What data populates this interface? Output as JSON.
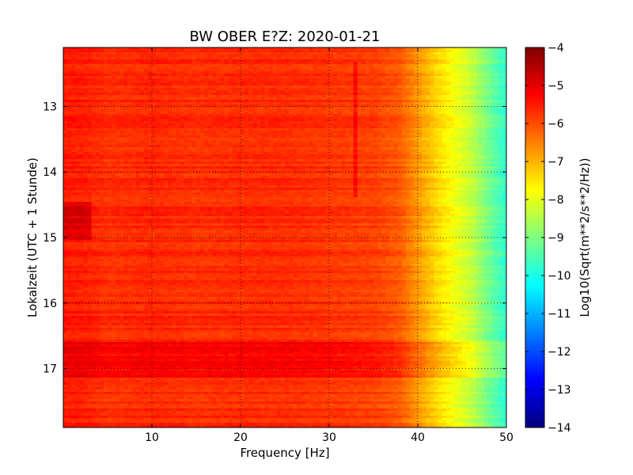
{
  "chart_data": {
    "type": "heatmap",
    "title": "BW OBER E?Z: 2020-01-21",
    "xlabel": "Frequency [Hz]",
    "ylabel": "Lokalzeit (UTC + 1 Stunde)",
    "xlim": [
      0,
      50
    ],
    "ylim": [
      12.1,
      17.9
    ],
    "y_inverted": true,
    "x_ticks": [
      10,
      20,
      30,
      40,
      50
    ],
    "x_tick_labels": [
      "10",
      "20",
      "30",
      "40",
      "50"
    ],
    "y_ticks": [
      13,
      14,
      15,
      16,
      17
    ],
    "y_tick_labels": [
      "13",
      "14",
      "15",
      "16",
      "17"
    ],
    "grid": true,
    "grid_style": "dotted",
    "colormap": "jet",
    "colorbar": {
      "label": "Log10(Sqrt(m**2/s**2/Hz))",
      "range": [
        -14,
        -4
      ],
      "ticks": [
        -4,
        -5,
        -6,
        -7,
        -8,
        -9,
        -10,
        -11,
        -12,
        -13,
        -14
      ],
      "tick_labels": [
        "−4",
        "−5",
        "−6",
        "−7",
        "−8",
        "−9",
        "−10",
        "−11",
        "−12",
        "−13",
        "−14"
      ]
    },
    "frequency_profile": {
      "frequency_hz": [
        0,
        2,
        5,
        10,
        15,
        20,
        25,
        30,
        35,
        38,
        40,
        42,
        44,
        46,
        48,
        50
      ],
      "log_psd": [
        -5.5,
        -5.5,
        -5.7,
        -5.6,
        -5.7,
        -5.65,
        -5.65,
        -5.75,
        -5.85,
        -6.1,
        -6.7,
        -7.3,
        -7.8,
        -8.3,
        -9.1,
        -9.8
      ]
    },
    "features": [
      {
        "label": "broadband high-energy band",
        "time_start": 16.58,
        "time_end": 17.15,
        "freq_start": 0,
        "freq_end": 50,
        "offset": 0.45
      },
      {
        "label": "low-frequency burst",
        "time_start": 14.45,
        "time_end": 15.05,
        "freq_start": 0,
        "freq_end": 3,
        "offset": 0.6
      },
      {
        "label": "narrow spectral line",
        "time_start": 12.3,
        "time_end": 14.4,
        "freq_start": 32.9,
        "freq_end": 33.2,
        "offset": 0.5
      }
    ]
  },
  "colors": {
    "background": "#ffffff",
    "axis": "#000000",
    "grid": "#000000"
  }
}
